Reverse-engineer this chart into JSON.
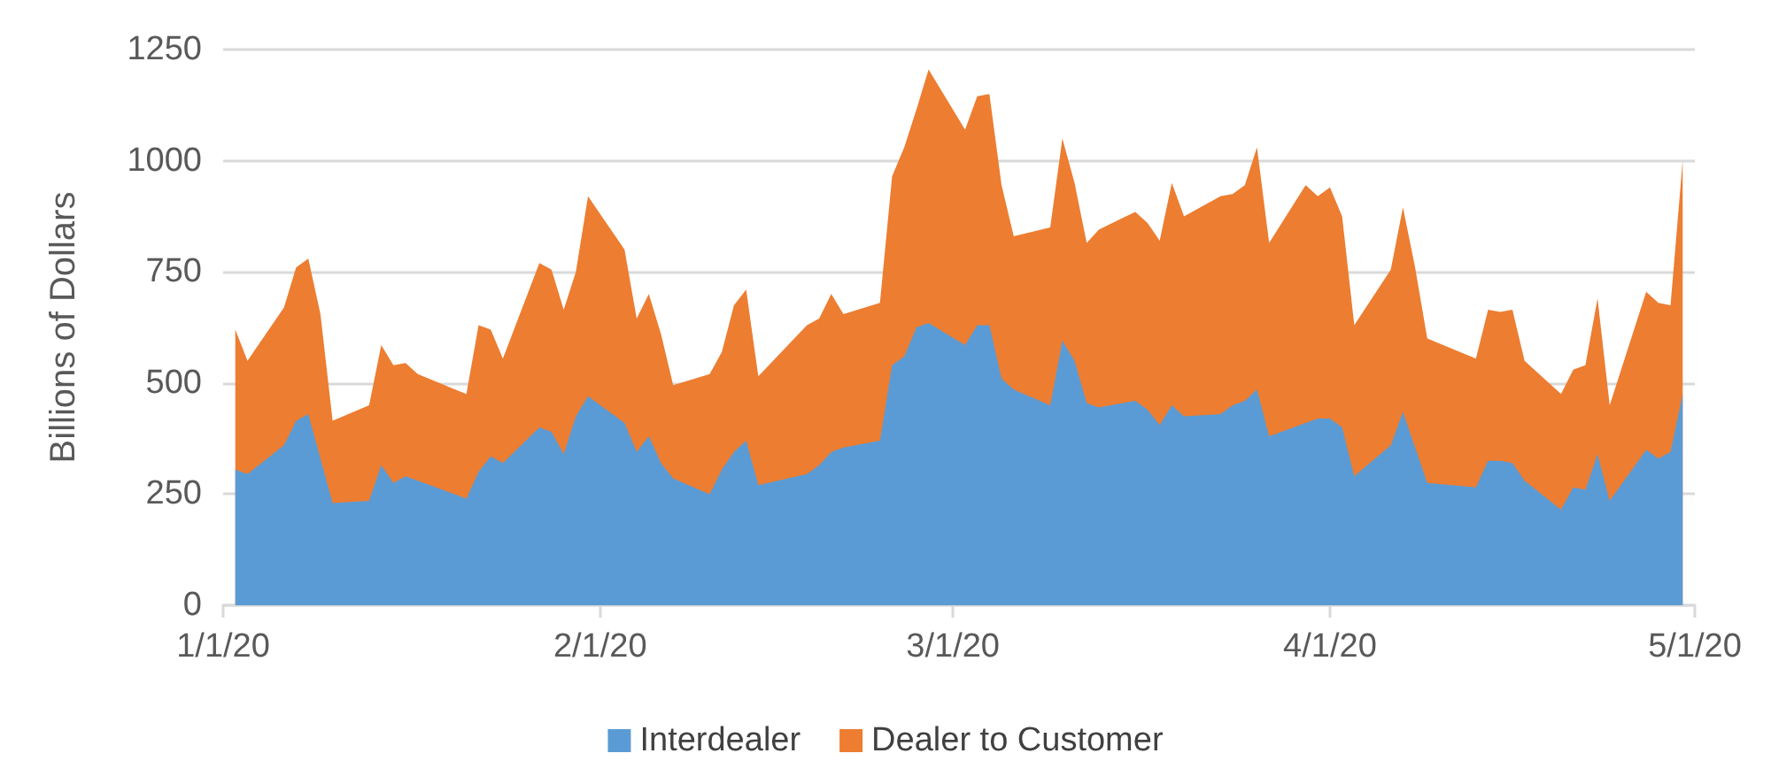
{
  "chart_data": {
    "type": "area",
    "stacked": true,
    "ylabel": "Billions of Dollars",
    "grid": "y",
    "legend": "bottom",
    "xlim": [
      "2020-01-01",
      "2020-05-01"
    ],
    "xticks": [
      {
        "value": "2020-01-01",
        "label": "1/1/20"
      },
      {
        "value": "2020-02-01",
        "label": "2/1/20"
      },
      {
        "value": "2020-03-01",
        "label": "3/1/20"
      },
      {
        "value": "2020-04-01",
        "label": "4/1/20"
      },
      {
        "value": "2020-05-01",
        "label": "5/1/20"
      }
    ],
    "ylim": [
      0,
      1250
    ],
    "yticks": [
      0,
      250,
      500,
      750,
      1000,
      1250
    ],
    "x": [
      "2020-01-02",
      "2020-01-03",
      "2020-01-06",
      "2020-01-07",
      "2020-01-08",
      "2020-01-09",
      "2020-01-10",
      "2020-01-13",
      "2020-01-14",
      "2020-01-15",
      "2020-01-16",
      "2020-01-17",
      "2020-01-21",
      "2020-01-22",
      "2020-01-23",
      "2020-01-24",
      "2020-01-27",
      "2020-01-28",
      "2020-01-29",
      "2020-01-30",
      "2020-01-31",
      "2020-02-03",
      "2020-02-04",
      "2020-02-05",
      "2020-02-06",
      "2020-02-07",
      "2020-02-10",
      "2020-02-11",
      "2020-02-12",
      "2020-02-13",
      "2020-02-14",
      "2020-02-18",
      "2020-02-19",
      "2020-02-20",
      "2020-02-21",
      "2020-02-24",
      "2020-02-25",
      "2020-02-26",
      "2020-02-27",
      "2020-02-28",
      "2020-03-02",
      "2020-03-03",
      "2020-03-04",
      "2020-03-05",
      "2020-03-06",
      "2020-03-09",
      "2020-03-10",
      "2020-03-11",
      "2020-03-12",
      "2020-03-13",
      "2020-03-16",
      "2020-03-17",
      "2020-03-18",
      "2020-03-19",
      "2020-03-20",
      "2020-03-23",
      "2020-03-24",
      "2020-03-25",
      "2020-03-26",
      "2020-03-27",
      "2020-03-30",
      "2020-03-31",
      "2020-04-01",
      "2020-04-02",
      "2020-04-03",
      "2020-04-06",
      "2020-04-07",
      "2020-04-08",
      "2020-04-09",
      "2020-04-13",
      "2020-04-14",
      "2020-04-15",
      "2020-04-16",
      "2020-04-17",
      "2020-04-20",
      "2020-04-21",
      "2020-04-22",
      "2020-04-23",
      "2020-04-24",
      "2020-04-27",
      "2020-04-28",
      "2020-04-29",
      "2020-04-30"
    ],
    "series": [
      {
        "name": "Interdealer",
        "color": "#5b9bd5",
        "values": [
          305,
          295,
          360,
          415,
          430,
          330,
          230,
          235,
          315,
          275,
          290,
          280,
          240,
          300,
          335,
          320,
          400,
          390,
          340,
          425,
          470,
          410,
          345,
          380,
          320,
          285,
          250,
          305,
          345,
          370,
          270,
          295,
          315,
          345,
          355,
          370,
          540,
          560,
          625,
          635,
          585,
          630,
          630,
          510,
          485,
          450,
          595,
          550,
          455,
          445,
          460,
          440,
          405,
          450,
          425,
          430,
          450,
          460,
          485,
          380,
          410,
          420,
          420,
          400,
          290,
          360,
          435,
          355,
          275,
          265,
          325,
          325,
          320,
          280,
          215,
          265,
          260,
          340,
          235,
          350,
          330,
          345,
          475
        ]
      },
      {
        "name": "Dealer to Customer",
        "color": "#ed7d31",
        "values": [
          315,
          255,
          310,
          345,
          350,
          325,
          185,
          215,
          270,
          265,
          255,
          240,
          235,
          330,
          285,
          235,
          370,
          365,
          325,
          325,
          450,
          390,
          300,
          320,
          290,
          210,
          270,
          265,
          330,
          340,
          245,
          335,
          330,
          355,
          300,
          310,
          425,
          470,
          490,
          570,
          485,
          515,
          520,
          435,
          345,
          400,
          455,
          400,
          360,
          400,
          425,
          420,
          415,
          500,
          450,
          490,
          475,
          485,
          545,
          435,
          535,
          500,
          520,
          475,
          340,
          395,
          460,
          405,
          325,
          290,
          340,
          335,
          345,
          270,
          260,
          265,
          280,
          350,
          215,
          355,
          350,
          330,
          525
        ]
      }
    ]
  }
}
